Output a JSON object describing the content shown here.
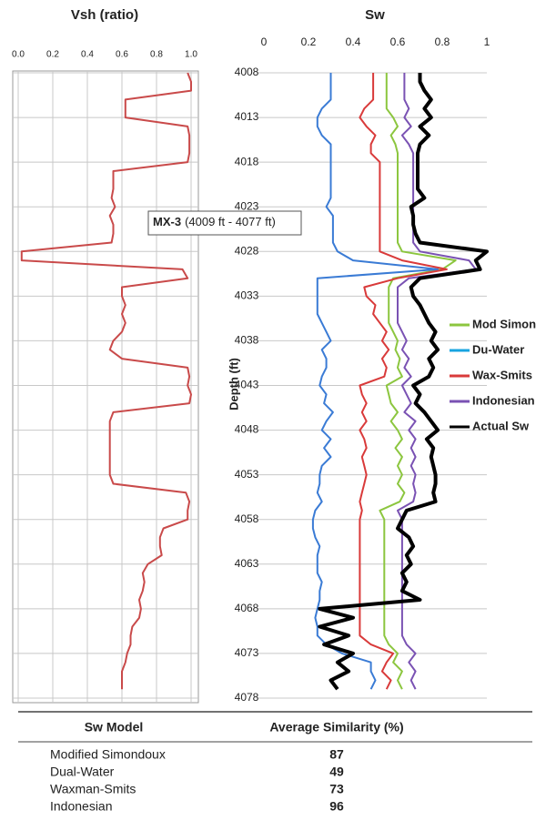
{
  "chart_data": [
    {
      "type": "line",
      "title": "Vsh (ratio)",
      "color": "#c94a4a",
      "xlim": [
        0,
        1
      ],
      "xticks": [
        {
          "value": 0,
          "label": "0.0"
        },
        0.2,
        0.4,
        0.6,
        0.8,
        {
          "value": 1,
          "label": "1.0"
        }
      ],
      "ylim": [
        4008,
        4078
      ],
      "invert_y": true,
      "yticks": [
        4008,
        4013,
        4018,
        4023,
        4028,
        4033,
        4038,
        4043,
        4048,
        4053,
        4058,
        4063,
        4068,
        4073,
        4078
      ],
      "show_ytick_labels": false,
      "grid": true,
      "depths": [
        4008,
        4009,
        4010,
        4011,
        4012,
        4013,
        4014,
        4015,
        4016,
        4017,
        4018,
        4019,
        4020,
        4021,
        4022,
        4023,
        4024,
        4025,
        4026,
        4027,
        4028,
        4029,
        4030,
        4031,
        4032,
        4033,
        4034,
        4035,
        4036,
        4037,
        4038,
        4039,
        4040,
        4041,
        4042,
        4043,
        4044,
        4045,
        4046,
        4047,
        4048,
        4049,
        4050,
        4051,
        4052,
        4053,
        4054,
        4055,
        4056,
        4057,
        4058,
        4059,
        4060,
        4061,
        4062,
        4063,
        4064,
        4065,
        4066,
        4067,
        4068,
        4069,
        4070,
        4071,
        4072,
        4073,
        4074,
        4075,
        4076,
        4077
      ],
      "values": [
        0.98,
        1.0,
        1.0,
        0.62,
        0.62,
        0.62,
        0.98,
        0.99,
        0.99,
        0.99,
        0.98,
        0.55,
        0.55,
        0.55,
        0.54,
        0.56,
        0.53,
        0.55,
        0.55,
        0.54,
        0.02,
        0.02,
        0.95,
        0.98,
        0.6,
        0.6,
        0.62,
        0.6,
        0.62,
        0.6,
        0.55,
        0.53,
        0.6,
        0.98,
        0.99,
        0.98,
        1.0,
        0.99,
        0.55,
        0.53,
        0.53,
        0.53,
        0.53,
        0.53,
        0.53,
        0.53,
        0.55,
        0.97,
        0.99,
        0.98,
        0.98,
        0.84,
        0.82,
        0.82,
        0.83,
        0.75,
        0.72,
        0.73,
        0.72,
        0.7,
        0.71,
        0.7,
        0.66,
        0.65,
        0.65,
        0.63,
        0.62,
        0.6,
        0.6,
        0.6
      ]
    },
    {
      "type": "line",
      "title": "Sw",
      "y_label": "Depth (ft)",
      "annotation_bold": "MX-3",
      "annotation": "(4009 ft - 4077 ft)",
      "xlim": [
        0,
        1
      ],
      "xticks": [
        0,
        0.2,
        0.4,
        0.6,
        0.8,
        1
      ],
      "ylim": [
        4008,
        4078
      ],
      "invert_y": true,
      "yticks": [
        4008,
        4013,
        4018,
        4023,
        4028,
        4033,
        4038,
        4043,
        4048,
        4053,
        4058,
        4063,
        4068,
        4073,
        4078
      ],
      "show_ytick_labels": true,
      "grid": true,
      "legend": "right",
      "depths": [
        4008,
        4009,
        4010,
        4011,
        4012,
        4013,
        4014,
        4015,
        4016,
        4017,
        4018,
        4019,
        4020,
        4021,
        4022,
        4023,
        4024,
        4025,
        4026,
        4027,
        4028,
        4029,
        4030,
        4031,
        4032,
        4033,
        4034,
        4035,
        4036,
        4037,
        4038,
        4039,
        4040,
        4041,
        4042,
        4043,
        4044,
        4045,
        4046,
        4047,
        4048,
        4049,
        4050,
        4051,
        4052,
        4053,
        4054,
        4055,
        4056,
        4057,
        4058,
        4059,
        4060,
        4061,
        4062,
        4063,
        4064,
        4065,
        4066,
        4067,
        4068,
        4069,
        4070,
        4071,
        4072,
        4073,
        4074,
        4075,
        4076,
        4077
      ],
      "series": [
        {
          "name": "Mod Simon",
          "color": "#8cc63f",
          "width": 2,
          "values": [
            0.55,
            0.55,
            0.55,
            0.55,
            0.55,
            0.58,
            0.6,
            0.57,
            0.59,
            0.6,
            0.6,
            0.6,
            0.6,
            0.6,
            0.6,
            0.6,
            0.6,
            0.6,
            0.6,
            0.6,
            0.62,
            0.86,
            0.8,
            0.58,
            0.56,
            0.56,
            0.56,
            0.56,
            0.56,
            0.58,
            0.6,
            0.59,
            0.61,
            0.6,
            0.62,
            0.55,
            0.56,
            0.57,
            0.6,
            0.57,
            0.6,
            0.62,
            0.59,
            0.62,
            0.6,
            0.62,
            0.6,
            0.63,
            0.61,
            0.52,
            0.54,
            0.54,
            0.54,
            0.54,
            0.54,
            0.54,
            0.54,
            0.54,
            0.54,
            0.54,
            0.54,
            0.54,
            0.54,
            0.54,
            0.56,
            0.6,
            0.58,
            0.62,
            0.6,
            0.62
          ]
        },
        {
          "name": "Du-Water",
          "color": "#3a7bd5",
          "width": 2,
          "values": [
            0.3,
            0.3,
            0.3,
            0.3,
            0.26,
            0.24,
            0.24,
            0.26,
            0.3,
            0.3,
            0.3,
            0.3,
            0.3,
            0.3,
            0.3,
            0.28,
            0.31,
            0.31,
            0.31,
            0.31,
            0.33,
            0.4,
            0.78,
            0.24,
            0.24,
            0.24,
            0.24,
            0.24,
            0.26,
            0.28,
            0.3,
            0.26,
            0.28,
            0.28,
            0.26,
            0.25,
            0.28,
            0.27,
            0.31,
            0.28,
            0.26,
            0.3,
            0.27,
            0.3,
            0.26,
            0.25,
            0.25,
            0.24,
            0.26,
            0.23,
            0.22,
            0.22,
            0.23,
            0.25,
            0.24,
            0.24,
            0.24,
            0.26,
            0.25,
            0.25,
            0.24,
            0.23,
            0.24,
            0.24,
            0.28,
            0.35,
            0.48,
            0.48,
            0.5,
            0.48
          ]
        },
        {
          "name": "Wax-Smits",
          "color": "#d93a3a",
          "width": 2,
          "values": [
            0.49,
            0.49,
            0.49,
            0.49,
            0.45,
            0.43,
            0.46,
            0.5,
            0.48,
            0.48,
            0.52,
            0.52,
            0.52,
            0.52,
            0.52,
            0.52,
            0.52,
            0.52,
            0.52,
            0.52,
            0.52,
            0.62,
            0.82,
            0.6,
            0.45,
            0.46,
            0.5,
            0.49,
            0.52,
            0.55,
            0.53,
            0.56,
            0.53,
            0.55,
            0.54,
            0.43,
            0.44,
            0.46,
            0.44,
            0.46,
            0.43,
            0.45,
            0.46,
            0.44,
            0.45,
            0.46,
            0.45,
            0.44,
            0.43,
            0.44,
            0.43,
            0.43,
            0.43,
            0.43,
            0.43,
            0.43,
            0.43,
            0.43,
            0.43,
            0.43,
            0.43,
            0.43,
            0.43,
            0.43,
            0.48,
            0.58,
            0.55,
            0.53,
            0.57,
            0.55
          ]
        },
        {
          "name": "Indonesian",
          "color": "#7a52b3",
          "width": 2,
          "values": [
            0.63,
            0.63,
            0.63,
            0.63,
            0.65,
            0.63,
            0.66,
            0.62,
            0.65,
            0.67,
            0.67,
            0.67,
            0.67,
            0.67,
            0.67,
            0.67,
            0.67,
            0.67,
            0.67,
            0.67,
            0.7,
            0.92,
            0.95,
            0.65,
            0.6,
            0.6,
            0.6,
            0.6,
            0.6,
            0.62,
            0.64,
            0.62,
            0.65,
            0.63,
            0.66,
            0.62,
            0.64,
            0.66,
            0.63,
            0.68,
            0.65,
            0.68,
            0.66,
            0.68,
            0.66,
            0.68,
            0.67,
            0.68,
            0.67,
            0.6,
            0.62,
            0.62,
            0.62,
            0.62,
            0.62,
            0.62,
            0.62,
            0.62,
            0.62,
            0.62,
            0.62,
            0.62,
            0.62,
            0.62,
            0.64,
            0.68,
            0.65,
            0.68,
            0.66,
            0.68
          ]
        },
        {
          "name": "Actual Sw",
          "color": "#000000",
          "width": 4,
          "values": [
            0.7,
            0.7,
            0.72,
            0.75,
            0.72,
            0.75,
            0.7,
            0.74,
            0.7,
            0.69,
            0.69,
            0.69,
            0.69,
            0.69,
            0.72,
            0.66,
            0.67,
            0.67,
            0.68,
            0.7,
            1.0,
            0.95,
            0.97,
            0.7,
            0.66,
            0.67,
            0.7,
            0.72,
            0.74,
            0.77,
            0.75,
            0.78,
            0.74,
            0.76,
            0.74,
            0.67,
            0.7,
            0.68,
            0.72,
            0.75,
            0.78,
            0.73,
            0.76,
            0.75,
            0.76,
            0.77,
            0.77,
            0.76,
            0.77,
            0.64,
            0.62,
            0.6,
            0.65,
            0.67,
            0.64,
            0.66,
            0.62,
            0.64,
            0.62,
            0.7,
            0.25,
            0.4,
            0.25,
            0.38,
            0.27,
            0.4,
            0.33,
            0.38,
            0.3,
            0.33
          ]
        }
      ]
    }
  ],
  "table": {
    "header": [
      "Sw Model",
      "Average Similarity (%)"
    ],
    "rows": [
      [
        "Modified Simondoux",
        "87"
      ],
      [
        "Dual-Water",
        "49"
      ],
      [
        "Waxman-Smits",
        "73"
      ],
      [
        "Indonesian",
        "96"
      ]
    ]
  }
}
